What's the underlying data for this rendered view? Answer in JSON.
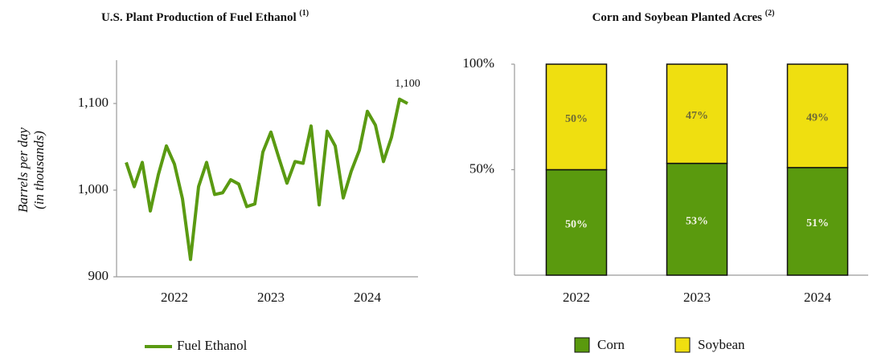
{
  "chart_data": [
    {
      "type": "line",
      "title": "U.S. Plant Production of Fuel Ethanol",
      "title_note": "(1)",
      "y_label": [
        "Barrels per day",
        "(in thousands)"
      ],
      "categories": [
        null,
        null,
        null,
        null,
        null,
        null,
        "2022",
        null,
        null,
        null,
        null,
        null,
        null,
        null,
        null,
        null,
        null,
        null,
        "2023",
        null,
        null,
        null,
        null,
        null,
        null,
        null,
        null,
        null,
        null,
        null,
        "2024",
        null,
        null,
        null,
        null,
        null
      ],
      "series": [
        {
          "name": "Fuel Ethanol",
          "color": "#5a9a12",
          "values": [
            1032,
            1004,
            1032,
            976,
            1018,
            1051,
            1030,
            990,
            920,
            1004,
            1032,
            995,
            997,
            1012,
            1007,
            981,
            984,
            1044,
            1067,
            1037,
            1008,
            1033,
            1031,
            1074,
            983,
            1068,
            1051,
            991,
            1022,
            1046,
            1091,
            1075,
            1033,
            1061,
            1105,
            1100
          ],
          "value_labels": [
            null,
            null,
            null,
            null,
            null,
            null,
            null,
            null,
            null,
            null,
            null,
            null,
            null,
            null,
            null,
            null,
            null,
            null,
            null,
            null,
            null,
            null,
            null,
            null,
            null,
            null,
            null,
            null,
            null,
            null,
            null,
            null,
            null,
            null,
            null,
            "1,100"
          ]
        }
      ],
      "ylim": [
        900,
        1150
      ],
      "yticks": [
        900,
        {
          "value": 1000,
          "label": "1,000"
        },
        {
          "value": 1100,
          "label": "1,100"
        }
      ]
    },
    {
      "type": "stacked_bar",
      "title": "Corn and Soybean Planted Acres",
      "title_note": "(2)",
      "categories": [
        "2022",
        "2023",
        "2024"
      ],
      "series": [
        {
          "name": "Corn",
          "color": "#5a9a0e",
          "label_color": "#f4f4e8",
          "values": [
            50,
            53,
            51
          ],
          "value_labels": [
            "50%",
            "53%",
            "51%"
          ]
        },
        {
          "name": "Soybean",
          "color": "#efdf10",
          "label_color": "#6e6a36",
          "values": [
            50,
            47,
            49
          ],
          "value_labels": [
            "50%",
            "47%",
            "49%"
          ]
        }
      ],
      "ylim": [
        0,
        100
      ],
      "yticks": [
        {
          "value": 50,
          "label": "50%"
        },
        {
          "value": 100,
          "label": "100%"
        }
      ]
    }
  ]
}
